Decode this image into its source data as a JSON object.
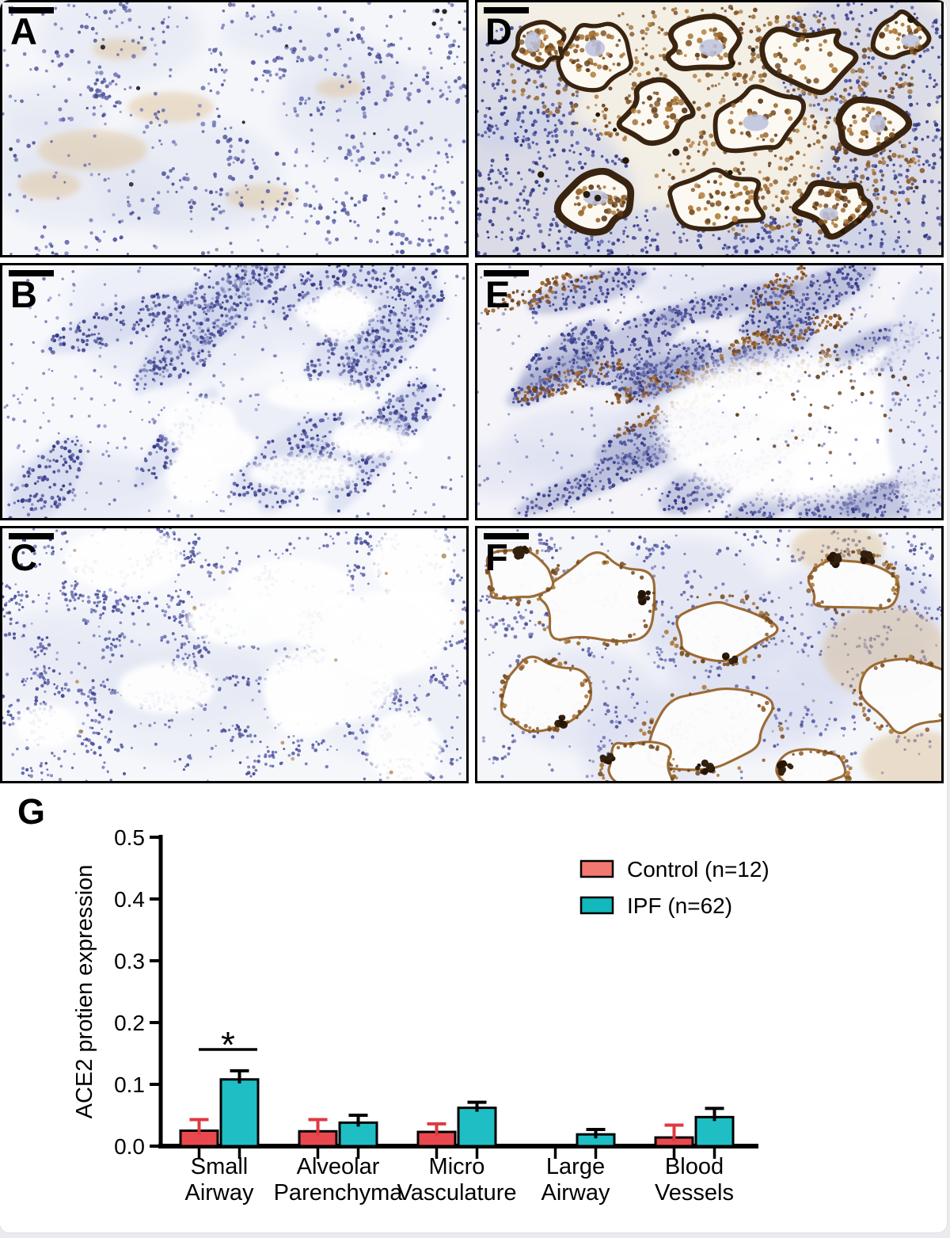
{
  "page": {
    "background_color": "#e9ebee",
    "card_background_color": "#ffffff"
  },
  "figure": {
    "panels": {
      "a": {
        "letter": "A"
      },
      "b": {
        "letter": "B"
      },
      "c": {
        "letter": "C"
      },
      "d": {
        "letter": "D"
      },
      "e": {
        "letter": "E"
      },
      "f": {
        "letter": "F"
      },
      "g": {
        "letter": "G"
      }
    },
    "stain_colors": {
      "hematoxylin_purple": "#5a5fa4",
      "dab_brown": "#7a4a1e",
      "dab_dark_brown": "#3a2410",
      "scale_bar": "#000000"
    }
  },
  "chart_data": {
    "type": "bar",
    "title": "",
    "ylabel": "ACE2 protien expression",
    "xlabel": "",
    "ylim": [
      0,
      0.5
    ],
    "yticks": [
      "0.0",
      "0.1",
      "0.2",
      "0.3",
      "0.4",
      "0.5"
    ],
    "categories": [
      [
        "Small",
        "Airway"
      ],
      [
        "Alveolar",
        "Parenchyma"
      ],
      [
        "Micro",
        "Vasculature"
      ],
      [
        "Large",
        "Airway"
      ],
      [
        "Blood",
        "Vessels"
      ]
    ],
    "series": [
      {
        "name": "Control (n=12)",
        "color": "#e9484f",
        "legend_color": "#f2796f",
        "error_color": "#dd3a42",
        "values": [
          0.025,
          0.024,
          0.023,
          0,
          0.014
        ],
        "errors": [
          0.018,
          0.019,
          0.013,
          0,
          0.02
        ]
      },
      {
        "name": "IPF (n=62)",
        "color": "#1fbec5",
        "legend_color": "#12b8bc",
        "error_color": "#000000",
        "values": [
          0.108,
          0.038,
          0.062,
          0.019,
          0.047
        ],
        "errors": [
          0.014,
          0.012,
          0.009,
          0.008,
          0.014
        ]
      }
    ],
    "significance": [
      {
        "category_index": 0,
        "label": "*"
      }
    ],
    "legend_position": "top-right",
    "grid": false,
    "axis_color": "#000000"
  }
}
